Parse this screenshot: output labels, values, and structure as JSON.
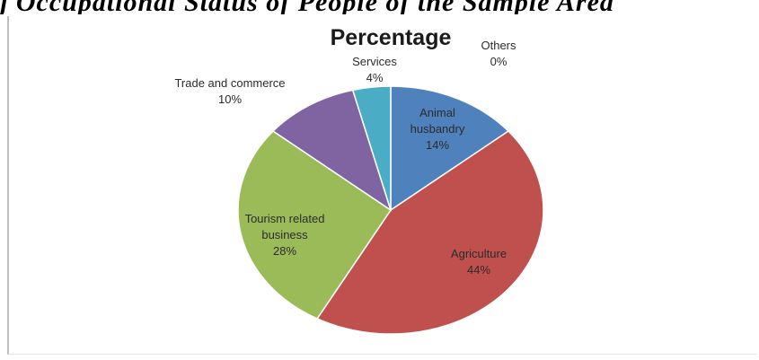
{
  "header": {
    "cut_text": "j    Occupational Status of People of the Sample Area"
  },
  "chart_data": {
    "type": "pie",
    "title": "Percentage",
    "slices": [
      {
        "label": "Animal husbandry",
        "value": 14,
        "display": "14%",
        "color": "#4f81bd"
      },
      {
        "label": "Agriculture",
        "value": 44,
        "display": "44%",
        "color": "#c0504d"
      },
      {
        "label": "Tourism related business",
        "value": 28,
        "display": "28%",
        "color": "#9bbb59"
      },
      {
        "label": "Trade and commerce",
        "value": 10,
        "display": "10%",
        "color": "#8064a2"
      },
      {
        "label": "Services",
        "value": 4,
        "display": "4%",
        "color": "#4bacc6"
      },
      {
        "label": "Others",
        "value": 0,
        "display": "0%",
        "color": "#f79646"
      }
    ],
    "legend": "none",
    "data_labels": "category and percentage"
  }
}
